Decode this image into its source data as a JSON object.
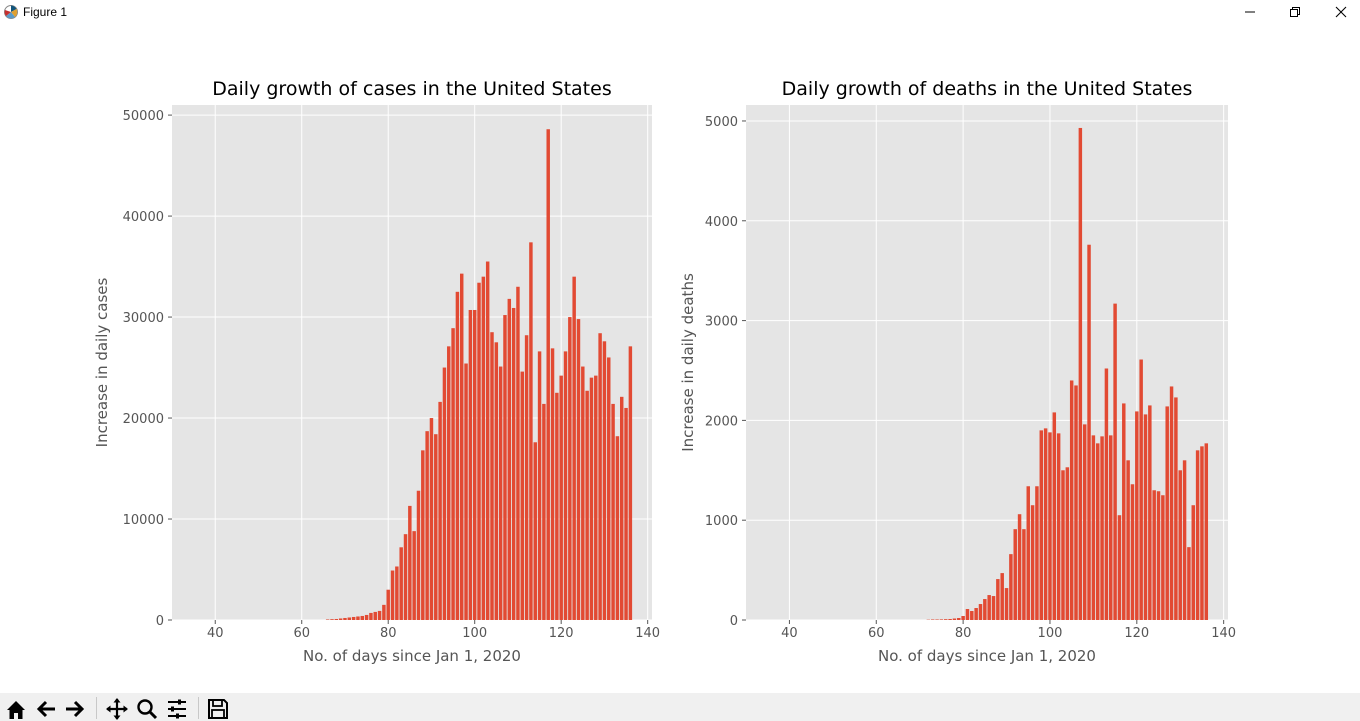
{
  "window": {
    "title": "Figure 1"
  },
  "toolbar": {
    "buttons": [
      {
        "name": "home-icon"
      },
      {
        "name": "back-arrow-icon"
      },
      {
        "name": "forward-arrow-icon"
      },
      {
        "name": "pan-icon"
      },
      {
        "name": "zoom-icon"
      },
      {
        "name": "configure-subplots-icon"
      },
      {
        "name": "save-icon"
      }
    ]
  },
  "colors": {
    "bar": "#E24A33",
    "axes_bg": "#E5E5E5",
    "grid": "#FFFFFF",
    "text": "#555555"
  },
  "chart_data": [
    {
      "type": "bar",
      "title": "Daily growth of cases in the United States",
      "xlabel": "No. of days since Jan 1, 2020",
      "ylabel": "Increase in daily cases",
      "xlim": [
        30,
        141
      ],
      "ylim": [
        0,
        51000
      ],
      "xticks": [
        40,
        60,
        80,
        100,
        120,
        140
      ],
      "yticks": [
        0,
        10000,
        20000,
        30000,
        40000,
        50000
      ],
      "grid": true,
      "x": [
        66,
        67,
        68,
        69,
        70,
        71,
        72,
        73,
        74,
        75,
        76,
        77,
        78,
        79,
        80,
        81,
        82,
        83,
        84,
        85,
        86,
        87,
        88,
        89,
        90,
        91,
        92,
        93,
        94,
        95,
        96,
        97,
        98,
        99,
        100,
        101,
        102,
        103,
        104,
        105,
        106,
        107,
        108,
        109,
        110,
        111,
        112,
        113,
        114,
        115,
        116,
        117,
        118,
        119,
        120,
        121,
        122,
        123,
        124,
        125,
        126,
        127,
        128,
        129,
        130,
        131,
        132,
        133,
        134,
        135,
        136
      ],
      "values": [
        50,
        80,
        100,
        150,
        200,
        250,
        300,
        350,
        400,
        500,
        700,
        800,
        900,
        1500,
        3000,
        4900,
        5300,
        7200,
        8500,
        11300,
        8800,
        12800,
        16800,
        18700,
        20000,
        18400,
        21600,
        25000,
        27100,
        28900,
        32500,
        34300,
        25400,
        30700,
        30700,
        33400,
        34000,
        35500,
        28500,
        27500,
        25100,
        30200,
        31800,
        30900,
        33000,
        24600,
        28200,
        37400,
        17600,
        26600,
        21400,
        48600,
        26900,
        22500,
        24200,
        26600,
        30000,
        34000,
        29800,
        25100,
        22700,
        24000,
        24200,
        28400,
        27600,
        26000,
        21400,
        18200,
        22100,
        21000,
        27100
      ]
    },
    {
      "type": "bar",
      "title": "Daily growth of deaths in the United States",
      "xlabel": "No. of days since Jan 1, 2020",
      "ylabel": "Increase in daily deaths",
      "xlim": [
        30,
        141
      ],
      "ylim": [
        0,
        5160
      ],
      "xticks": [
        40,
        60,
        80,
        100,
        120,
        140
      ],
      "yticks": [
        0,
        1000,
        2000,
        3000,
        4000,
        5000
      ],
      "grid": true,
      "x": [
        72,
        73,
        74,
        75,
        76,
        77,
        78,
        79,
        80,
        81,
        82,
        83,
        84,
        85,
        86,
        87,
        88,
        89,
        90,
        91,
        92,
        93,
        94,
        95,
        96,
        97,
        98,
        99,
        100,
        101,
        102,
        103,
        104,
        105,
        106,
        107,
        108,
        109,
        110,
        111,
        112,
        113,
        114,
        115,
        116,
        117,
        118,
        119,
        120,
        121,
        122,
        123,
        124,
        125,
        126,
        127,
        128,
        129,
        130,
        131,
        132,
        133,
        134,
        135,
        136
      ],
      "values": [
        3,
        5,
        5,
        6,
        8,
        10,
        15,
        20,
        40,
        110,
        90,
        120,
        160,
        210,
        250,
        240,
        410,
        470,
        320,
        660,
        910,
        1060,
        910,
        1340,
        1150,
        1340,
        1900,
        1920,
        1880,
        2080,
        1870,
        1500,
        1530,
        2400,
        2350,
        4930,
        1960,
        3760,
        1850,
        1770,
        1840,
        2520,
        1850,
        3170,
        1050,
        2170,
        1600,
        1360,
        2090,
        2610,
        2060,
        2150,
        1300,
        1290,
        1250,
        2140,
        2340,
        2230,
        1500,
        1600,
        730,
        1150,
        1700,
        1740,
        1770
      ]
    }
  ]
}
